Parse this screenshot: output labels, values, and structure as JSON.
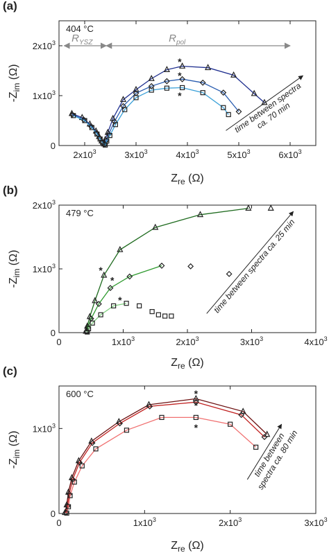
{
  "chart_data": [
    {
      "panel_label": "(a)",
      "temperature": "404 °C",
      "type": "scatter",
      "xlabel": "Z",
      "xlabel_sub": "re",
      "xlabel_unit": " (Ω)",
      "ylabel": "-Z",
      "ylabel_sub": "im",
      "ylabel_unit": " (Ω)",
      "xlim": [
        1500,
        6500
      ],
      "ylim": [
        0,
        2500
      ],
      "x_ticks": [
        {
          "v": 2000,
          "m": "2x10",
          "e": "3"
        },
        {
          "v": 3000,
          "m": "3x10",
          "e": "3"
        },
        {
          "v": 4000,
          "m": "4x10",
          "e": "3"
        },
        {
          "v": 5000,
          "m": "5x10",
          "e": "3"
        },
        {
          "v": 6000,
          "m": "6x10",
          "e": "3"
        }
      ],
      "y_ticks": [
        {
          "v": 0,
          "m": "0",
          "e": ""
        },
        {
          "v": 1000,
          "m": "1x10",
          "e": "3"
        },
        {
          "v": 2000,
          "m": "2x10",
          "e": "3"
        }
      ],
      "range_labels": [
        {
          "main": "R",
          "sub": "YSZ",
          "from": 1600,
          "to": 2420,
          "y": 2000,
          "label_x": 1950
        },
        {
          "main": "R",
          "sub": "pol",
          "from": 2420,
          "to": 6000,
          "y": 2000,
          "label_x": 3800
        }
      ],
      "series": [
        {
          "marker": "triangle",
          "color": "#1f2f8f",
          "points": [
            [
              1750,
              640
            ],
            [
              1950,
              560
            ],
            [
              2100,
              430
            ],
            [
              2220,
              290
            ],
            [
              2280,
              180
            ],
            [
              2330,
              90
            ],
            [
              2380,
              30
            ],
            [
              2400,
              120
            ],
            [
              2450,
              260
            ],
            [
              2550,
              540
            ],
            [
              2750,
              920
            ],
            [
              3000,
              1120
            ],
            [
              3300,
              1340
            ],
            [
              3600,
              1520
            ],
            [
              3900,
              1590
            ],
            [
              4400,
              1560
            ],
            [
              4900,
              1410
            ],
            [
              5300,
              1040
            ],
            [
              5500,
              860
            ]
          ]
        },
        {
          "marker": "diamond",
          "color": "#2a5db0",
          "points": [
            [
              1760,
              620
            ],
            [
              1980,
              520
            ],
            [
              2120,
              390
            ],
            [
              2230,
              250
            ],
            [
              2290,
              150
            ],
            [
              2340,
              70
            ],
            [
              2390,
              20
            ],
            [
              2420,
              100
            ],
            [
              2470,
              230
            ],
            [
              2580,
              480
            ],
            [
              2750,
              790
            ],
            [
              3000,
              1050
            ],
            [
              3300,
              1190
            ],
            [
              3600,
              1290
            ],
            [
              3900,
              1330
            ],
            [
              4300,
              1260
            ],
            [
              4700,
              1060
            ],
            [
              5000,
              680
            ]
          ]
        },
        {
          "marker": "square",
          "color": "#3aa0d8",
          "points": [
            [
              1780,
              600
            ],
            [
              2000,
              500
            ],
            [
              2140,
              360
            ],
            [
              2240,
              230
            ],
            [
              2300,
              130
            ],
            [
              2350,
              60
            ],
            [
              2400,
              10
            ],
            [
              2430,
              90
            ],
            [
              2490,
              200
            ],
            [
              2600,
              420
            ],
            [
              2780,
              720
            ],
            [
              3000,
              960
            ],
            [
              3300,
              1110
            ],
            [
              3600,
              1150
            ],
            [
              3900,
              1160
            ],
            [
              4300,
              1060
            ],
            [
              4700,
              760
            ],
            [
              4800,
              620
            ]
          ]
        }
      ],
      "asterisks": [
        [
          3850,
          1680
        ],
        [
          3850,
          1400
        ],
        [
          3850,
          1000
        ]
      ],
      "annotation": [
        "time between spectra",
        "ca. 70 min"
      ],
      "arrow": {
        "from": [
          4750,
          300
        ],
        "to": [
          6250,
          1400
        ]
      }
    },
    {
      "panel_label": "(b)",
      "temperature": "479 °C",
      "type": "scatter",
      "xlabel": "Z",
      "xlabel_sub": "re",
      "xlabel_unit": " (Ω)",
      "ylabel": "-Z",
      "ylabel_sub": "im",
      "ylabel_unit": " (Ω)",
      "xlim": [
        0,
        4000
      ],
      "ylim": [
        0,
        2000
      ],
      "x_ticks": [
        {
          "v": 0,
          "m": "0",
          "e": ""
        },
        {
          "v": 1000,
          "m": "1x10",
          "e": "3"
        },
        {
          "v": 2000,
          "m": "2x10",
          "e": "3"
        },
        {
          "v": 3000,
          "m": "3x10",
          "e": "3"
        },
        {
          "v": 4000,
          "m": "4x10",
          "e": "3"
        }
      ],
      "y_ticks": [
        {
          "v": 0,
          "m": "0",
          "e": ""
        },
        {
          "v": 1000,
          "m": "1x10",
          "e": "3"
        },
        {
          "v": 2000,
          "m": "2x10",
          "e": "3"
        }
      ],
      "range_labels": [],
      "series": [
        {
          "marker": "triangle",
          "color": "#1f6b1f",
          "line_until": 8,
          "points": [
            [
              420,
              20
            ],
            [
              440,
              100
            ],
            [
              480,
              250
            ],
            [
              560,
              500
            ],
            [
              700,
              900
            ],
            [
              950,
              1300
            ],
            [
              1500,
              1650
            ],
            [
              2200,
              1850
            ],
            [
              2950,
              1950
            ],
            [
              3300,
              1950
            ]
          ]
        },
        {
          "marker": "diamond",
          "color": "#2f9a2f",
          "line_until": 6,
          "points": [
            [
              430,
              20
            ],
            [
              450,
              90
            ],
            [
              500,
              220
            ],
            [
              620,
              450
            ],
            [
              800,
              700
            ],
            [
              1100,
              880
            ],
            [
              1600,
              1050
            ],
            [
              2050,
              1040
            ],
            [
              2650,
              920
            ]
          ]
        },
        {
          "marker": "square",
          "color": "#7fcf7f",
          "line_until": 5,
          "points": [
            [
              440,
              10
            ],
            [
              460,
              60
            ],
            [
              520,
              150
            ],
            [
              650,
              280
            ],
            [
              850,
              420
            ],
            [
              1050,
              460
            ],
            [
              1250,
              420
            ],
            [
              1450,
              330
            ],
            [
              1550,
              280
            ],
            [
              1650,
              260
            ],
            [
              1750,
              260
            ]
          ]
        }
      ],
      "asterisks": [
        [
          650,
          980
        ],
        [
          830,
          820
        ],
        [
          950,
          510
        ]
      ],
      "annotation": [
        "time between spectra ca. 25 min"
      ],
      "arrow": {
        "from": [
          2300,
          300
        ],
        "to": [
          3650,
          1900
        ]
      }
    },
    {
      "panel_label": "(c)",
      "temperature": "600 °C",
      "type": "scatter",
      "xlabel": "Z",
      "xlabel_sub": "re",
      "xlabel_unit": " (Ω)",
      "ylabel": "-Z",
      "ylabel_sub": "im",
      "ylabel_unit": " (Ω)",
      "xlim": [
        0,
        3000
      ],
      "ylim": [
        0,
        1500
      ],
      "x_ticks": [
        {
          "v": 0,
          "m": "0",
          "e": ""
        },
        {
          "v": 1000,
          "m": "1x10",
          "e": "3"
        },
        {
          "v": 2000,
          "m": "2x10",
          "e": "3"
        },
        {
          "v": 3000,
          "m": "3x10",
          "e": "3"
        }
      ],
      "y_ticks": [
        {
          "v": 0,
          "m": "0",
          "e": ""
        },
        {
          "v": 1000,
          "m": "1x10",
          "e": "3"
        }
      ],
      "range_labels": [],
      "series": [
        {
          "marker": "triangle",
          "color": "#6b0f0f",
          "points": [
            [
              70,
              10
            ],
            [
              90,
              100
            ],
            [
              110,
              250
            ],
            [
              150,
              420
            ],
            [
              230,
              620
            ],
            [
              380,
              850
            ],
            [
              700,
              1080
            ],
            [
              1050,
              1280
            ],
            [
              1600,
              1350
            ],
            [
              2150,
              1200
            ],
            [
              2430,
              930
            ]
          ]
        },
        {
          "marker": "diamond",
          "color": "#c0201f",
          "points": [
            [
              80,
              10
            ],
            [
              100,
              90
            ],
            [
              120,
              230
            ],
            [
              160,
              400
            ],
            [
              240,
              600
            ],
            [
              390,
              830
            ],
            [
              710,
              1060
            ],
            [
              1060,
              1260
            ],
            [
              1600,
              1310
            ],
            [
              2130,
              1160
            ],
            [
              2400,
              900
            ]
          ]
        },
        {
          "marker": "square",
          "color": "#f07070",
          "points": [
            [
              90,
              5
            ],
            [
              110,
              80
            ],
            [
              130,
              210
            ],
            [
              180,
              370
            ],
            [
              270,
              560
            ],
            [
              430,
              760
            ],
            [
              790,
              980
            ],
            [
              1200,
              1130
            ],
            [
              1600,
              1130
            ],
            [
              2000,
              1050
            ],
            [
              2300,
              780
            ]
          ]
        }
      ],
      "asterisks": [
        [
          1600,
          1410
        ],
        [
          1600,
          1270
        ],
        [
          1600,
          1010
        ]
      ],
      "annotation": [
        "time between",
        "spectra ca. 80 min"
      ],
      "arrow": {
        "from": [
          2200,
          400
        ],
        "to": [
          2600,
          1050
        ]
      }
    }
  ]
}
